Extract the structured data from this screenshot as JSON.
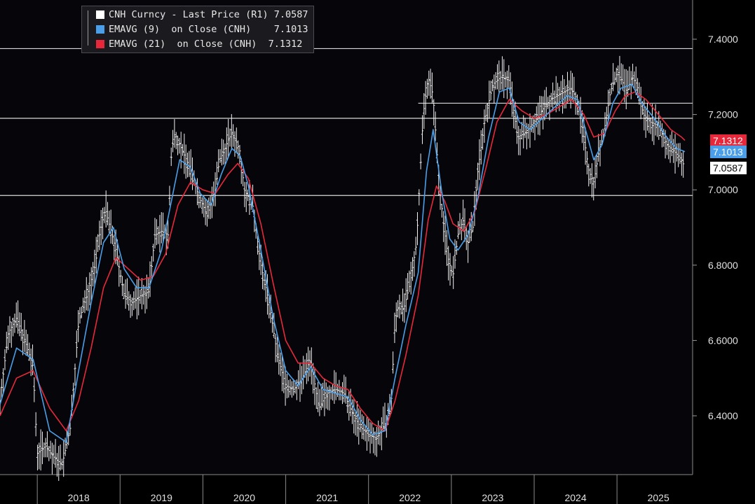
{
  "chart_data": {
    "type": "line",
    "title": "",
    "xlabel": "",
    "ylabel": "",
    "x_ticks": [
      "2018",
      "2019",
      "2020",
      "2021",
      "2022",
      "2023",
      "2024",
      "2025"
    ],
    "y_ticks": [
      "6.4000",
      "6.6000",
      "6.8000",
      "7.0000",
      "7.2000",
      "7.4000"
    ],
    "ylim": [
      6.28,
      7.5
    ],
    "y_axis_side": "right",
    "grid": false,
    "legend_position": "top-left",
    "reference_lines": [
      7.375,
      7.19,
      6.985,
      7.23
    ],
    "series": [
      {
        "name": "CNH Curncy - Last Price (R1)",
        "last": "7.0587",
        "color": "#ffffff",
        "style": "bars",
        "points": [
          [
            2017.55,
            6.44
          ],
          [
            2017.65,
            6.62
          ],
          [
            2017.75,
            6.66
          ],
          [
            2017.85,
            6.6
          ],
          [
            2017.95,
            6.53
          ],
          [
            2018.0,
            6.3
          ],
          [
            2018.1,
            6.32
          ],
          [
            2018.2,
            6.29
          ],
          [
            2018.3,
            6.27
          ],
          [
            2018.4,
            6.37
          ],
          [
            2018.5,
            6.65
          ],
          [
            2018.6,
            6.72
          ],
          [
            2018.7,
            6.8
          ],
          [
            2018.75,
            6.88
          ],
          [
            2018.82,
            6.95
          ],
          [
            2018.88,
            6.9
          ],
          [
            2018.95,
            6.84
          ],
          [
            2019.05,
            6.72
          ],
          [
            2019.15,
            6.7
          ],
          [
            2019.25,
            6.72
          ],
          [
            2019.35,
            6.73
          ],
          [
            2019.42,
            6.88
          ],
          [
            2019.5,
            6.89
          ],
          [
            2019.58,
            6.88
          ],
          [
            2019.62,
            7.1
          ],
          [
            2019.66,
            7.15
          ],
          [
            2019.72,
            7.12
          ],
          [
            2019.8,
            7.08
          ],
          [
            2019.88,
            7.04
          ],
          [
            2019.95,
            6.98
          ],
          [
            2020.0,
            6.96
          ],
          [
            2020.05,
            6.93
          ],
          [
            2020.1,
            6.97
          ],
          [
            2020.15,
            7.0
          ],
          [
            2020.2,
            7.08
          ],
          [
            2020.25,
            7.1
          ],
          [
            2020.3,
            7.13
          ],
          [
            2020.35,
            7.15
          ],
          [
            2020.4,
            7.13
          ],
          [
            2020.45,
            7.1
          ],
          [
            2020.5,
            7.0
          ],
          [
            2020.6,
            6.96
          ],
          [
            2020.7,
            6.8
          ],
          [
            2020.8,
            6.7
          ],
          [
            2020.9,
            6.56
          ],
          [
            2021.0,
            6.48
          ],
          [
            2021.1,
            6.47
          ],
          [
            2021.2,
            6.5
          ],
          [
            2021.3,
            6.55
          ],
          [
            2021.4,
            6.42
          ],
          [
            2021.5,
            6.46
          ],
          [
            2021.6,
            6.47
          ],
          [
            2021.7,
            6.46
          ],
          [
            2021.8,
            6.41
          ],
          [
            2021.9,
            6.37
          ],
          [
            2022.0,
            6.35
          ],
          [
            2022.1,
            6.34
          ],
          [
            2022.2,
            6.38
          ],
          [
            2022.27,
            6.42
          ],
          [
            2022.32,
            6.65
          ],
          [
            2022.37,
            6.7
          ],
          [
            2022.42,
            6.68
          ],
          [
            2022.5,
            6.75
          ],
          [
            2022.58,
            6.86
          ],
          [
            2022.66,
            7.2
          ],
          [
            2022.72,
            7.3
          ],
          [
            2022.78,
            7.25
          ],
          [
            2022.84,
            7.05
          ],
          [
            2022.9,
            6.92
          ],
          [
            2022.96,
            6.82
          ],
          [
            2023.02,
            6.77
          ],
          [
            2023.08,
            6.88
          ],
          [
            2023.14,
            6.92
          ],
          [
            2023.2,
            6.86
          ],
          [
            2023.26,
            6.9
          ],
          [
            2023.32,
            7.05
          ],
          [
            2023.4,
            7.18
          ],
          [
            2023.5,
            7.28
          ],
          [
            2023.6,
            7.3
          ],
          [
            2023.7,
            7.29
          ],
          [
            2023.8,
            7.14
          ],
          [
            2023.88,
            7.15
          ],
          [
            2023.96,
            7.17
          ],
          [
            2024.04,
            7.19
          ],
          [
            2024.12,
            7.22
          ],
          [
            2024.2,
            7.24
          ],
          [
            2024.28,
            7.25
          ],
          [
            2024.36,
            7.26
          ],
          [
            2024.44,
            7.27
          ],
          [
            2024.52,
            7.24
          ],
          [
            2024.6,
            7.14
          ],
          [
            2024.66,
            7.05
          ],
          [
            2024.72,
            7.02
          ],
          [
            2024.78,
            7.1
          ],
          [
            2024.84,
            7.15
          ],
          [
            2024.92,
            7.26
          ],
          [
            2025.0,
            7.31
          ],
          [
            2025.06,
            7.29
          ],
          [
            2025.12,
            7.26
          ],
          [
            2025.18,
            7.3
          ],
          [
            2025.24,
            7.28
          ],
          [
            2025.32,
            7.2
          ],
          [
            2025.4,
            7.18
          ],
          [
            2025.5,
            7.17
          ],
          [
            2025.6,
            7.12
          ],
          [
            2025.7,
            7.1
          ],
          [
            2025.78,
            7.08
          ],
          [
            2025.82,
            7.0587
          ]
        ]
      },
      {
        "name": "EMAVG (9)  on Close (CNH)",
        "last": "7.1013",
        "color": "#4a9fe8",
        "style": "line",
        "points": [
          [
            2017.55,
            6.43
          ],
          [
            2017.75,
            6.58
          ],
          [
            2017.95,
            6.55
          ],
          [
            2018.15,
            6.36
          ],
          [
            2018.35,
            6.33
          ],
          [
            2018.5,
            6.52
          ],
          [
            2018.65,
            6.7
          ],
          [
            2018.8,
            6.86
          ],
          [
            2018.92,
            6.9
          ],
          [
            2019.05,
            6.79
          ],
          [
            2019.2,
            6.74
          ],
          [
            2019.35,
            6.74
          ],
          [
            2019.5,
            6.84
          ],
          [
            2019.62,
            6.97
          ],
          [
            2019.72,
            7.08
          ],
          [
            2019.85,
            7.06
          ],
          [
            2019.97,
            6.99
          ],
          [
            2020.1,
            6.96
          ],
          [
            2020.22,
            7.04
          ],
          [
            2020.35,
            7.11
          ],
          [
            2020.45,
            7.09
          ],
          [
            2020.55,
            7.01
          ],
          [
            2020.7,
            6.84
          ],
          [
            2020.85,
            6.66
          ],
          [
            2021.0,
            6.52
          ],
          [
            2021.15,
            6.48
          ],
          [
            2021.3,
            6.53
          ],
          [
            2021.45,
            6.47
          ],
          [
            2021.6,
            6.46
          ],
          [
            2021.75,
            6.45
          ],
          [
            2021.9,
            6.39
          ],
          [
            2022.05,
            6.35
          ],
          [
            2022.2,
            6.36
          ],
          [
            2022.32,
            6.5
          ],
          [
            2022.45,
            6.64
          ],
          [
            2022.6,
            6.78
          ],
          [
            2022.7,
            7.05
          ],
          [
            2022.78,
            7.16
          ],
          [
            2022.88,
            7.0
          ],
          [
            2022.98,
            6.87
          ],
          [
            2023.08,
            6.84
          ],
          [
            2023.2,
            6.88
          ],
          [
            2023.32,
            6.98
          ],
          [
            2023.45,
            7.14
          ],
          [
            2023.58,
            7.26
          ],
          [
            2023.7,
            7.27
          ],
          [
            2023.82,
            7.18
          ],
          [
            2023.95,
            7.16
          ],
          [
            2024.1,
            7.19
          ],
          [
            2024.25,
            7.22
          ],
          [
            2024.4,
            7.25
          ],
          [
            2024.52,
            7.24
          ],
          [
            2024.62,
            7.16
          ],
          [
            2024.72,
            7.08
          ],
          [
            2024.82,
            7.12
          ],
          [
            2024.95,
            7.23
          ],
          [
            2025.05,
            7.27
          ],
          [
            2025.18,
            7.28
          ],
          [
            2025.3,
            7.23
          ],
          [
            2025.45,
            7.19
          ],
          [
            2025.6,
            7.14
          ],
          [
            2025.72,
            7.11
          ],
          [
            2025.82,
            7.1013
          ]
        ]
      },
      {
        "name": "EMAVG (21)  on Close (CNH)",
        "last": "7.1312",
        "color": "#e8283a",
        "style": "line",
        "points": [
          [
            2017.55,
            6.4
          ],
          [
            2017.75,
            6.5
          ],
          [
            2017.95,
            6.52
          ],
          [
            2018.15,
            6.42
          ],
          [
            2018.35,
            6.36
          ],
          [
            2018.5,
            6.44
          ],
          [
            2018.65,
            6.58
          ],
          [
            2018.8,
            6.74
          ],
          [
            2018.95,
            6.82
          ],
          [
            2019.1,
            6.79
          ],
          [
            2019.25,
            6.76
          ],
          [
            2019.4,
            6.77
          ],
          [
            2019.55,
            6.83
          ],
          [
            2019.7,
            6.96
          ],
          [
            2019.85,
            7.02
          ],
          [
            2020.0,
            7.0
          ],
          [
            2020.15,
            6.99
          ],
          [
            2020.3,
            7.04
          ],
          [
            2020.42,
            7.07
          ],
          [
            2020.55,
            7.03
          ],
          [
            2020.7,
            6.91
          ],
          [
            2020.85,
            6.75
          ],
          [
            2021.0,
            6.6
          ],
          [
            2021.15,
            6.54
          ],
          [
            2021.3,
            6.54
          ],
          [
            2021.45,
            6.5
          ],
          [
            2021.6,
            6.48
          ],
          [
            2021.75,
            6.47
          ],
          [
            2021.9,
            6.42
          ],
          [
            2022.05,
            6.38
          ],
          [
            2022.2,
            6.36
          ],
          [
            2022.32,
            6.44
          ],
          [
            2022.45,
            6.56
          ],
          [
            2022.6,
            6.72
          ],
          [
            2022.72,
            6.92
          ],
          [
            2022.82,
            7.01
          ],
          [
            2022.92,
            6.97
          ],
          [
            2023.02,
            6.91
          ],
          [
            2023.15,
            6.89
          ],
          [
            2023.28,
            6.94
          ],
          [
            2023.42,
            7.06
          ],
          [
            2023.55,
            7.18
          ],
          [
            2023.7,
            7.24
          ],
          [
            2023.85,
            7.21
          ],
          [
            2024.0,
            7.19
          ],
          [
            2024.15,
            7.2
          ],
          [
            2024.3,
            7.22
          ],
          [
            2024.45,
            7.24
          ],
          [
            2024.6,
            7.2
          ],
          [
            2024.72,
            7.14
          ],
          [
            2024.85,
            7.15
          ],
          [
            2024.98,
            7.21
          ],
          [
            2025.1,
            7.25
          ],
          [
            2025.22,
            7.26
          ],
          [
            2025.35,
            7.24
          ],
          [
            2025.5,
            7.2
          ],
          [
            2025.65,
            7.16
          ],
          [
            2025.78,
            7.14
          ],
          [
            2025.82,
            7.1312
          ]
        ]
      }
    ]
  }
}
